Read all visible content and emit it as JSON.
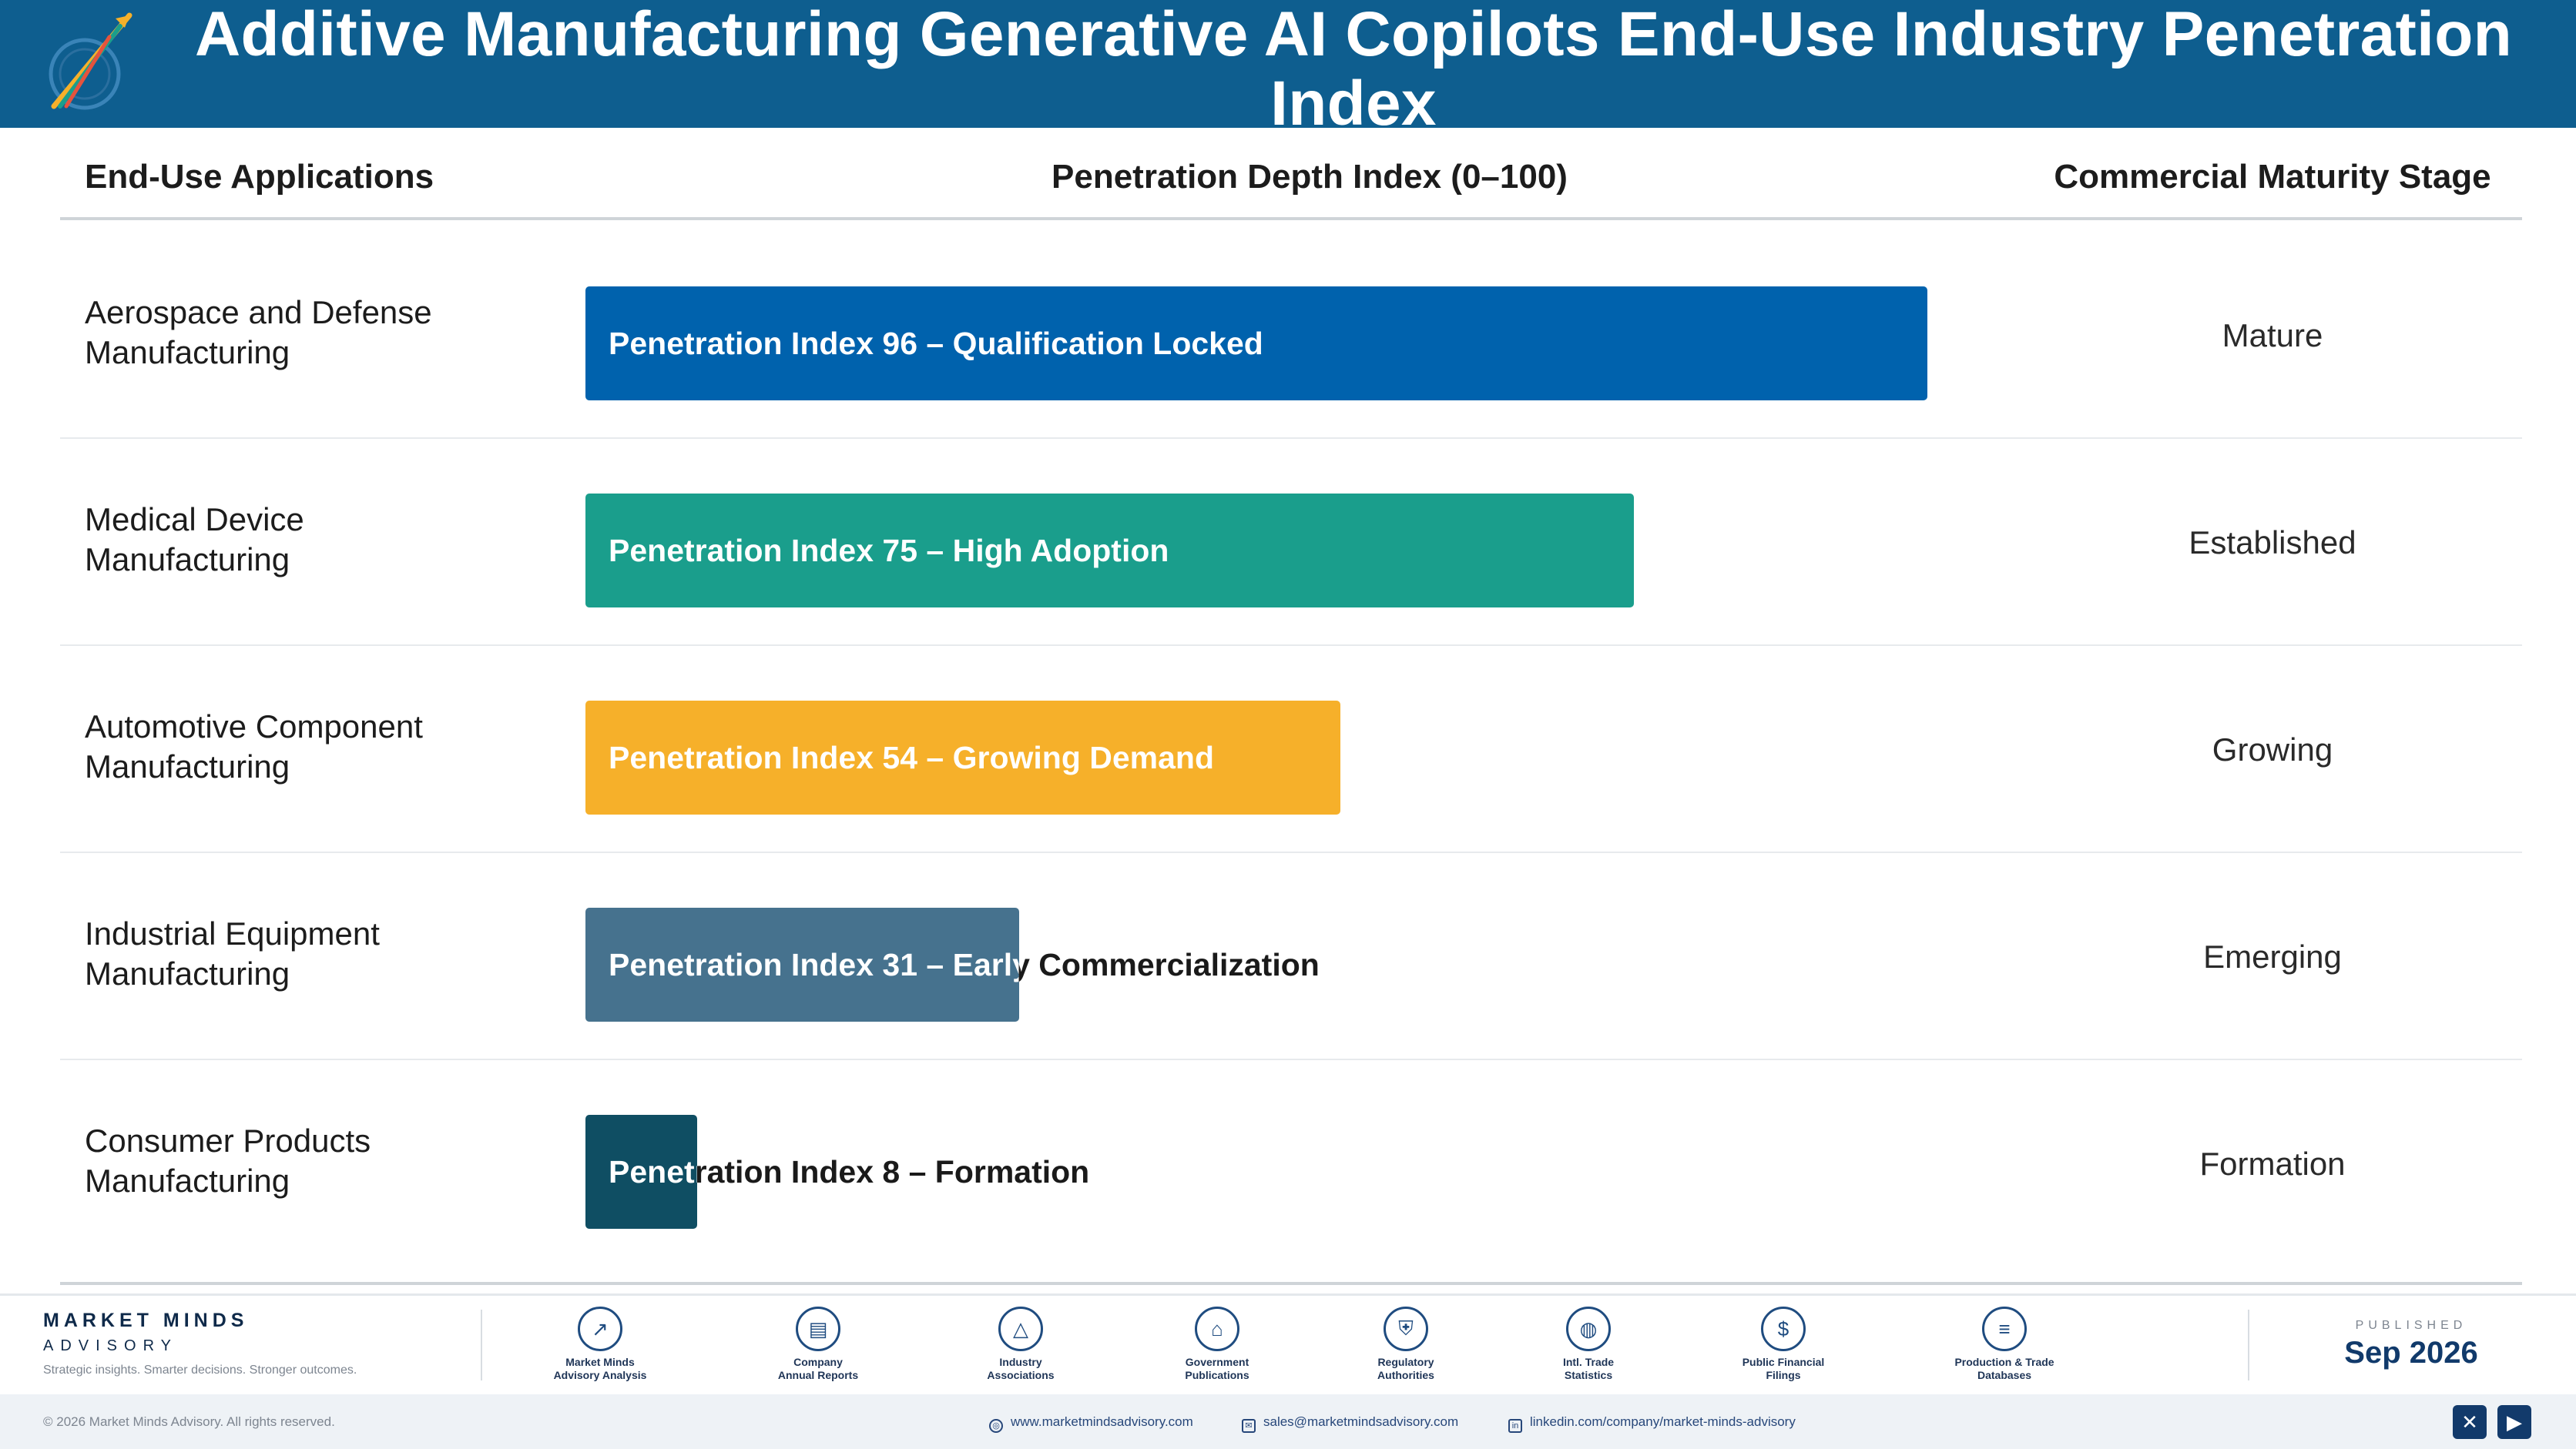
{
  "title": "Additive Manufacturing Generative AI Copilots End-Use Industry Penetration Index",
  "columns": {
    "applications": "End-Use Applications",
    "index": "Penetration Depth Index (0–100)",
    "stage": "Commercial Maturity Stage"
  },
  "chart_data": {
    "type": "bar",
    "orientation": "horizontal",
    "title": "Additive Manufacturing Generative AI Copilots End-Use Industry Penetration Index",
    "xlabel": "Penetration Depth Index (0–100)",
    "ylabel": "End-Use Applications",
    "xlim": [
      0,
      100
    ],
    "categories": [
      "Aerospace and Defense Manufacturing",
      "Medical Device Manufacturing",
      "Automotive Component Manufacturing",
      "Industrial Equipment Manufacturing",
      "Consumer Products Manufacturing"
    ],
    "values": [
      96,
      75,
      54,
      31,
      8
    ],
    "rows": [
      {
        "application_line1": "Aerospace and Defense",
        "application_line2": "Manufacturing",
        "value": 96,
        "bar_label": "Penetration Index 96 – Qualification Locked",
        "stage": "Mature",
        "color": "#0062ad"
      },
      {
        "application_line1": "Medical Device",
        "application_line2": "Manufacturing",
        "value": 75,
        "bar_label": "Penetration Index 75 – High Adoption",
        "stage": "Established",
        "color": "#1a9e8c"
      },
      {
        "application_line1": "Automotive Component",
        "application_line2": "Manufacturing",
        "value": 54,
        "bar_label": "Penetration Index 54 – Growing Demand",
        "stage": "Growing",
        "color": "#f6b02a"
      },
      {
        "application_line1": "Industrial Equipment",
        "application_line2": "Manufacturing",
        "value": 31,
        "bar_label": "Penetration Index 31 – Early Commercialization",
        "stage": "Emerging",
        "color": "#46728e"
      },
      {
        "application_line1": "Consumer Products",
        "application_line2": "Manufacturing",
        "value": 8,
        "bar_label": "Penetration Index 8 – Formation",
        "stage": "Formation",
        "color": "#0f4e63"
      }
    ]
  },
  "footer": {
    "brand_name": "MARKET MINDS",
    "brand_sub": "ADVISORY",
    "tagline": "Strategic insights. Smarter decisions. Stronger outcomes.",
    "sources": [
      {
        "line1": "Market Minds",
        "line2": "Advisory Analysis",
        "icon": "chart-icon"
      },
      {
        "line1": "Company",
        "line2": "Annual Reports",
        "icon": "document-icon"
      },
      {
        "line1": "Industry",
        "line2": "Associations",
        "icon": "network-icon"
      },
      {
        "line1": "Government",
        "line2": "Publications",
        "icon": "building-icon"
      },
      {
        "line1": "Regulatory",
        "line2": "Authorities",
        "icon": "shield-icon"
      },
      {
        "line1": "Intl. Trade",
        "line2": "Statistics",
        "icon": "globe-icon"
      },
      {
        "line1": "Public Financial",
        "line2": "Filings",
        "icon": "dollar-icon"
      },
      {
        "line1": "Production & Trade",
        "line2": "Databases",
        "icon": "database-icon"
      }
    ],
    "published_label": "PUBLISHED",
    "published_date": "Sep 2026",
    "copyright": "© 2026 Market Minds Advisory. All rights reserved.",
    "website": "www.marketmindsadvisory.com",
    "email": "sales@marketmindsadvisory.com",
    "linkedin": "linkedin.com/company/market-minds-advisory"
  }
}
